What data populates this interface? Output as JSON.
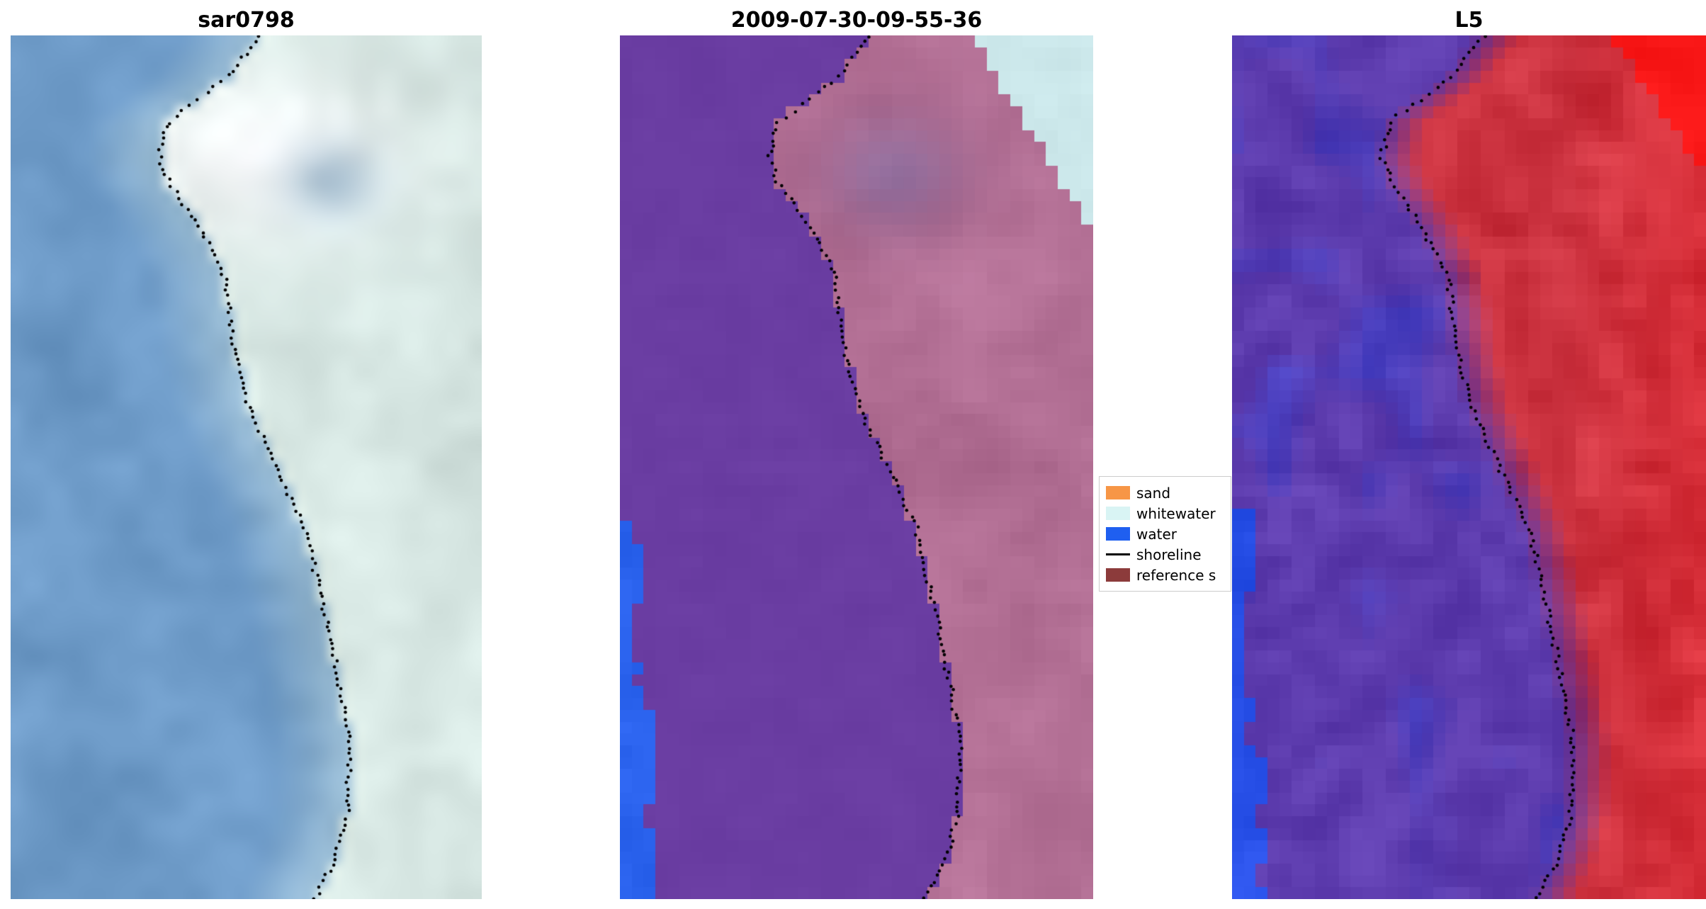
{
  "figure": {
    "background": "#ffffff",
    "panels": [
      {
        "title": "sar0798",
        "palette": {
          "water": "#6f9cc9",
          "water_light": "#bed6da",
          "land": "#d7e7e3",
          "land_bright": "#fcfeff",
          "land_shadow": "#96b0c4"
        }
      },
      {
        "title": "2009-07-30-09-55-36",
        "palette": {
          "water_class": "#6a3da2",
          "land": "#b26f94",
          "land_shadow": "#8a6d9e",
          "whitewater": "#cde9ec",
          "water": "#2b63ee"
        }
      },
      {
        "title": "L5",
        "palette": {
          "violet": "#5d3cae",
          "violet_blue": "#3e3ec4",
          "red": "#cc3340",
          "red_bright": "#e2262c",
          "corner_red": "#fa1818",
          "water": "#2850e8"
        }
      }
    ],
    "legend": {
      "entries": [
        {
          "label": "sand",
          "swatch": "patch",
          "color": "#f79646"
        },
        {
          "label": "whitewater",
          "swatch": "patch",
          "color": "#d9f4f4"
        },
        {
          "label": "water",
          "swatch": "patch",
          "color": "#1f5ff0"
        },
        {
          "label": "shoreline",
          "swatch": "line",
          "color": "#000000"
        },
        {
          "label": "reference s",
          "swatch": "patch",
          "color": "#8c3b3b"
        }
      ]
    }
  },
  "chart_data": {
    "type": "heatmap",
    "title": "",
    "panels": [
      {
        "title": "sar0798",
        "content": "SAR backscatter image, water (blue) left of dotted shoreline, land (bright) right"
      },
      {
        "title": "2009-07-30-09-55-36",
        "content": "Classified optical image: purple water mask left of shoreline, mauve land right, whitewater patch top-right, blue water pixels along lower-left edge"
      },
      {
        "title": "L5",
        "content": "Landsat 5 false-color image: violet water left, red land right, bright red top-right corner, blue pixels lower-left edge"
      }
    ],
    "legend_entries": [
      "sand",
      "whitewater",
      "water",
      "shoreline",
      "reference s"
    ],
    "shoreline_normalized": [
      [
        0.0,
        0.53
      ],
      [
        0.05,
        0.46
      ],
      [
        0.1,
        0.335
      ],
      [
        0.14,
        0.315
      ],
      [
        0.17,
        0.335
      ],
      [
        0.22,
        0.4
      ],
      [
        0.28,
        0.455
      ],
      [
        0.36,
        0.475
      ],
      [
        0.43,
        0.505
      ],
      [
        0.5,
        0.565
      ],
      [
        0.57,
        0.625
      ],
      [
        0.65,
        0.66
      ],
      [
        0.73,
        0.69
      ],
      [
        0.82,
        0.72
      ],
      [
        0.9,
        0.715
      ],
      [
        0.95,
        0.69
      ],
      [
        1.0,
        0.645
      ]
    ]
  }
}
